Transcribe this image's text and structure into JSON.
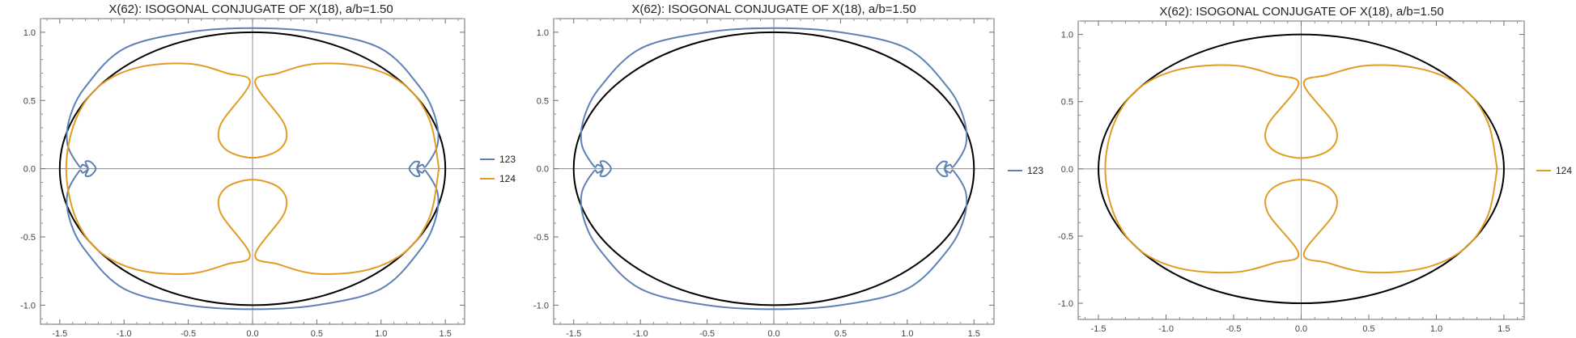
{
  "chart_data": [
    {
      "type": "line",
      "title": "X(62): ISOGONAL CONJUGATE OF X(18), a/b=1.50",
      "xlim": [
        -1.65,
        1.65
      ],
      "ylim": [
        -1.14,
        1.1
      ],
      "xticks": [
        -1.5,
        -1.0,
        -0.5,
        0.0,
        0.5,
        1.0,
        1.5
      ],
      "xtick_labels": [
        "-1.5",
        "-1.0",
        "-0.5",
        "0.0",
        "0.5",
        "1.0",
        "1.5"
      ],
      "yticks": [
        -1.0,
        -0.5,
        0.0,
        0.5,
        1.0
      ],
      "ytick_labels": [
        "-1.0",
        "-0.5",
        "0.0",
        "0.5",
        "1.0"
      ],
      "legend_position": "right",
      "series": [
        {
          "name": "",
          "color": "#000000",
          "kind": "reference-ellipse",
          "x": [
            1.5,
            1.299,
            0.75,
            0.0,
            -0.75,
            -1.299,
            -1.5,
            -1.299,
            -0.75,
            0.0,
            0.75,
            1.299,
            1.5
          ],
          "y": [
            0.0,
            0.5,
            0.866,
            1.0,
            0.866,
            0.5,
            0.0,
            -0.5,
            -0.866,
            -1.0,
            -0.866,
            -0.5,
            0.0
          ]
        },
        {
          "name": "123",
          "color": "#5e81b5",
          "x": [
            1.3,
            1.28,
            1.32,
            1.35,
            1.44,
            1.42,
            1.3,
            1.0,
            0.5,
            0.0,
            -0.5,
            -1.0,
            -1.3,
            -1.42,
            -1.44,
            -1.35,
            -1.32,
            -1.28,
            -1.3,
            -1.26,
            -1.22,
            -1.26,
            -1.3,
            -1.28,
            -1.32,
            -1.35,
            -1.44,
            -1.42,
            -1.3,
            -1.0,
            -0.5,
            0.0,
            0.5,
            1.0,
            1.3,
            1.42,
            1.44,
            1.35,
            1.32,
            1.28,
            1.3,
            1.26,
            1.22,
            1.26,
            1.3
          ],
          "y": [
            0.05,
            0.0,
            -0.03,
            -0.02,
            -0.18,
            -0.38,
            -0.6,
            -0.88,
            -1.0,
            -1.03,
            -1.0,
            -0.88,
            -0.6,
            -0.38,
            -0.18,
            -0.02,
            -0.03,
            0.0,
            0.05,
            0.05,
            0.0,
            -0.05,
            -0.05,
            0.0,
            0.03,
            0.02,
            0.18,
            0.38,
            0.6,
            0.88,
            1.0,
            1.03,
            1.0,
            0.88,
            0.6,
            0.38,
            0.18,
            0.02,
            0.03,
            0.0,
            -0.05,
            -0.05,
            0.0,
            0.05,
            0.05
          ]
        },
        {
          "name": "124",
          "color": "#e19c24",
          "x": [
            1.45,
            1.38,
            1.2,
            0.9,
            0.5,
            0.2,
            0.02,
            0.25,
            0.22,
            0.0,
            -0.22,
            -0.25,
            -0.02,
            -0.2,
            -0.5,
            -0.9,
            -1.2,
            -1.38,
            -1.45,
            -1.38,
            -1.2,
            -0.9,
            -0.5,
            -0.2,
            -0.02,
            -0.25,
            -0.22,
            0.0,
            0.22,
            0.25,
            0.02,
            0.2,
            0.5,
            0.9,
            1.2,
            1.38,
            1.45
          ],
          "y": [
            0.0,
            0.35,
            0.6,
            0.74,
            0.77,
            0.7,
            0.63,
            0.32,
            0.15,
            0.08,
            0.15,
            0.32,
            0.63,
            0.7,
            0.77,
            0.74,
            0.6,
            0.35,
            0.0,
            -0.35,
            -0.6,
            -0.74,
            -0.77,
            -0.7,
            -0.63,
            -0.32,
            -0.15,
            -0.08,
            -0.15,
            -0.32,
            -0.63,
            -0.7,
            -0.77,
            -0.74,
            -0.6,
            -0.35,
            0.0
          ]
        }
      ],
      "legend": [
        {
          "label": "123",
          "color": "#5e81b5"
        },
        {
          "label": "124",
          "color": "#e19c24"
        }
      ]
    },
    {
      "type": "line",
      "title": "X(62): ISOGONAL CONJUGATE OF X(18), a/b=1.50",
      "xlim": [
        -1.65,
        1.65
      ],
      "ylim": [
        -1.14,
        1.1
      ],
      "xticks": [
        -1.5,
        -1.0,
        -0.5,
        0.0,
        0.5,
        1.0,
        1.5
      ],
      "xtick_labels": [
        "-1.5",
        "-1.0",
        "-0.5",
        "0.0",
        "0.5",
        "1.0",
        "1.5"
      ],
      "yticks": [
        -1.0,
        -0.5,
        0.0,
        0.5,
        1.0
      ],
      "ytick_labels": [
        "-1.0",
        "-0.5",
        "0.0",
        "0.5",
        "1.0"
      ],
      "legend_position": "right",
      "series": [
        {
          "name": "",
          "color": "#000000",
          "kind": "reference-ellipse",
          "x": [
            1.5,
            1.299,
            0.75,
            0.0,
            -0.75,
            -1.299,
            -1.5,
            -1.299,
            -0.75,
            0.0,
            0.75,
            1.299,
            1.5
          ],
          "y": [
            0.0,
            0.5,
            0.866,
            1.0,
            0.866,
            0.5,
            0.0,
            -0.5,
            -0.866,
            -1.0,
            -0.866,
            -0.5,
            0.0
          ]
        },
        {
          "name": "123",
          "color": "#5e81b5",
          "x": [
            1.3,
            1.28,
            1.32,
            1.35,
            1.44,
            1.42,
            1.3,
            1.0,
            0.5,
            0.0,
            -0.5,
            -1.0,
            -1.3,
            -1.42,
            -1.44,
            -1.35,
            -1.32,
            -1.28,
            -1.3,
            -1.26,
            -1.22,
            -1.26,
            -1.3,
            -1.28,
            -1.32,
            -1.35,
            -1.44,
            -1.42,
            -1.3,
            -1.0,
            -0.5,
            0.0,
            0.5,
            1.0,
            1.3,
            1.42,
            1.44,
            1.35,
            1.32,
            1.28,
            1.3,
            1.26,
            1.22,
            1.26,
            1.3
          ],
          "y": [
            0.05,
            0.0,
            -0.03,
            -0.02,
            -0.18,
            -0.38,
            -0.6,
            -0.88,
            -1.0,
            -1.03,
            -1.0,
            -0.88,
            -0.6,
            -0.38,
            -0.18,
            -0.02,
            -0.03,
            0.0,
            0.05,
            0.05,
            0.0,
            -0.05,
            -0.05,
            0.0,
            0.03,
            0.02,
            0.18,
            0.38,
            0.6,
            0.88,
            1.0,
            1.03,
            1.0,
            0.88,
            0.6,
            0.38,
            0.18,
            0.02,
            0.03,
            0.0,
            -0.05,
            -0.05,
            0.0,
            0.05,
            0.05
          ]
        }
      ],
      "legend": [
        {
          "label": "123",
          "color": "#5e81b5"
        }
      ]
    },
    {
      "type": "line",
      "title": "X(62): ISOGONAL CONJUGATE OF X(18), a/b=1.50",
      "xlim": [
        -1.65,
        1.65
      ],
      "ylim": [
        -1.12,
        1.1
      ],
      "xticks": [
        -1.5,
        -1.0,
        -0.5,
        0.0,
        0.5,
        1.0,
        1.5
      ],
      "xtick_labels": [
        "-1.5",
        "-1.0",
        "-0.5",
        "0.0",
        "0.5",
        "1.0",
        "1.5"
      ],
      "yticks": [
        -1.0,
        -0.5,
        0.0,
        0.5,
        1.0
      ],
      "ytick_labels": [
        "-1.0",
        "-0.5",
        "0.0",
        "0.5",
        "1.0"
      ],
      "legend_position": "right",
      "series": [
        {
          "name": "",
          "color": "#000000",
          "kind": "reference-ellipse",
          "x": [
            1.5,
            1.299,
            0.75,
            0.0,
            -0.75,
            -1.299,
            -1.5,
            -1.299,
            -0.75,
            0.0,
            0.75,
            1.299,
            1.5
          ],
          "y": [
            0.0,
            0.5,
            0.866,
            1.0,
            0.866,
            0.5,
            0.0,
            -0.5,
            -0.866,
            -1.0,
            -0.866,
            -0.5,
            0.0
          ]
        },
        {
          "name": "124",
          "color": "#e19c24",
          "x": [
            1.45,
            1.38,
            1.2,
            0.9,
            0.5,
            0.2,
            0.02,
            0.25,
            0.22,
            0.0,
            -0.22,
            -0.25,
            -0.02,
            -0.2,
            -0.5,
            -0.9,
            -1.2,
            -1.38,
            -1.45,
            -1.38,
            -1.2,
            -0.9,
            -0.5,
            -0.2,
            -0.02,
            -0.25,
            -0.22,
            0.0,
            0.22,
            0.25,
            0.02,
            0.2,
            0.5,
            0.9,
            1.2,
            1.38,
            1.45
          ],
          "y": [
            0.0,
            0.35,
            0.6,
            0.74,
            0.77,
            0.7,
            0.63,
            0.32,
            0.15,
            0.08,
            0.15,
            0.32,
            0.63,
            0.7,
            0.77,
            0.74,
            0.6,
            0.35,
            0.0,
            -0.35,
            -0.6,
            -0.74,
            -0.77,
            -0.7,
            -0.63,
            -0.32,
            -0.15,
            -0.08,
            -0.15,
            -0.32,
            -0.63,
            -0.7,
            -0.77,
            -0.74,
            -0.6,
            -0.35,
            0.0
          ]
        }
      ],
      "legend": [
        {
          "label": "124",
          "color": "#e19c24"
        }
      ]
    }
  ]
}
